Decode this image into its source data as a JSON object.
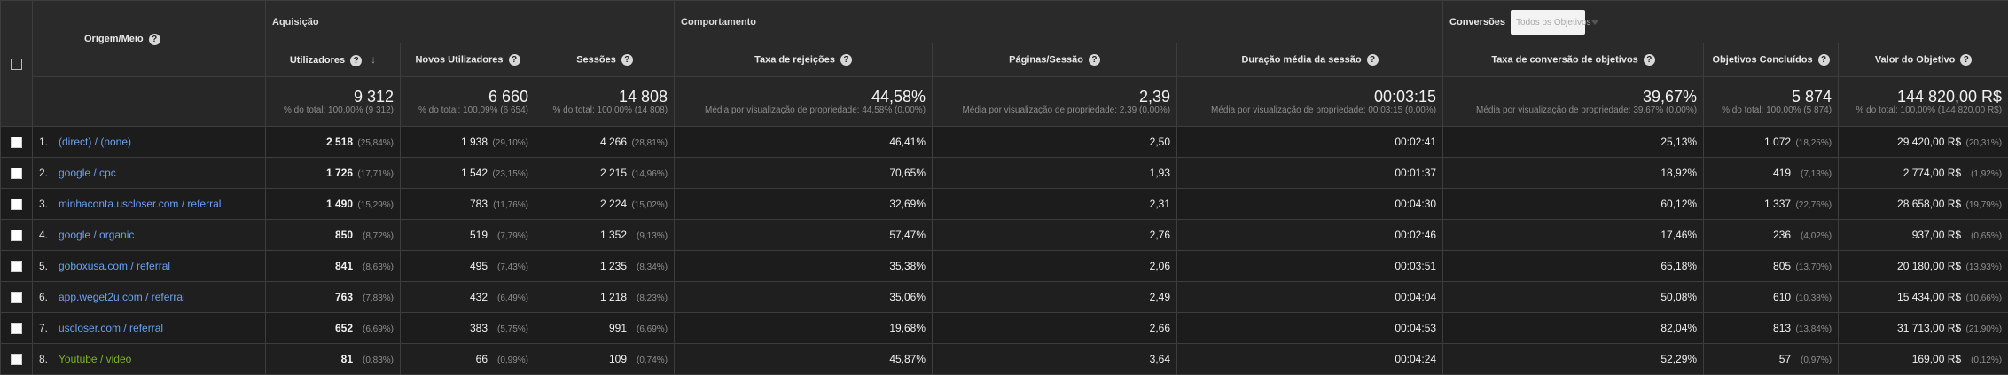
{
  "header": {
    "dimension": "Origem/Meio",
    "groups": {
      "acquisition": "Aquisição",
      "behavior": "Comportamento",
      "conversions": "Conversões"
    },
    "goal_select": "Todos os Objetivos",
    "columns": {
      "users": "Utilizadores",
      "new_users": "Novos Utilizadores",
      "sessions": "Sessões",
      "bounce": "Taxa de rejeições",
      "pages": "Páginas/Sessão",
      "duration": "Duração média da sessão",
      "conv_rate": "Taxa de conversão de objetivos",
      "completions": "Objetivos Concluídos",
      "value": "Valor do Objetivo"
    },
    "help_glyph": "?",
    "sort_glyph": "↓"
  },
  "totals": {
    "users": {
      "value": "9 312",
      "sub": "% do total: 100,00% (9 312)"
    },
    "new_users": {
      "value": "6 660",
      "sub": "% do total: 100,09% (6 654)"
    },
    "sessions": {
      "value": "14 808",
      "sub": "% do total: 100,00% (14 808)"
    },
    "bounce": {
      "value": "44,58%",
      "sub": "Média por visualização de propriedade: 44,58% (0,00%)"
    },
    "pages": {
      "value": "2,39",
      "sub": "Média por visualização de propriedade: 2,39 (0,00%)"
    },
    "duration": {
      "value": "00:03:15",
      "sub": "Média por visualização de propriedade: 00:03:15 (0,00%)"
    },
    "conv_rate": {
      "value": "39,67%",
      "sub": "Média por visualização de propriedade: 39,67% (0,00%)"
    },
    "completions": {
      "value": "5 874",
      "sub": "% do total: 100,00% (5 874)"
    },
    "value": {
      "value": "144 820,00 R$",
      "sub": "% do total: 100,00% (144 820,00 R$)"
    }
  },
  "rows": [
    {
      "rank": "1.",
      "source": "(direct) / (none)",
      "users": "2 518",
      "users_pct": "(25,84%)",
      "new_users": "1 938",
      "new_users_pct": "(29,10%)",
      "sessions": "4 266",
      "sessions_pct": "(28,81%)",
      "bounce": "46,41%",
      "pages": "2,50",
      "duration": "00:02:41",
      "conv_rate": "25,13%",
      "completions": "1 072",
      "completions_pct": "(18,25%)",
      "value": "29 420,00 R$",
      "value_pct": "(20,31%)"
    },
    {
      "rank": "2.",
      "source": "google / cpc",
      "users": "1 726",
      "users_pct": "(17,71%)",
      "new_users": "1 542",
      "new_users_pct": "(23,15%)",
      "sessions": "2 215",
      "sessions_pct": "(14,96%)",
      "bounce": "70,65%",
      "pages": "1,93",
      "duration": "00:01:37",
      "conv_rate": "18,92%",
      "completions": "419",
      "completions_pct": "(7,13%)",
      "value": "2 774,00 R$",
      "value_pct": "(1,92%)"
    },
    {
      "rank": "3.",
      "source": "minhaconta.uscloser.com / referral",
      "users": "1 490",
      "users_pct": "(15,29%)",
      "new_users": "783",
      "new_users_pct": "(11,76%)",
      "sessions": "2 224",
      "sessions_pct": "(15,02%)",
      "bounce": "32,69%",
      "pages": "2,31",
      "duration": "00:04:30",
      "conv_rate": "60,12%",
      "completions": "1 337",
      "completions_pct": "(22,76%)",
      "value": "28 658,00 R$",
      "value_pct": "(19,79%)"
    },
    {
      "rank": "4.",
      "source": "google / organic",
      "users": "850",
      "users_pct": "(8,72%)",
      "new_users": "519",
      "new_users_pct": "(7,79%)",
      "sessions": "1 352",
      "sessions_pct": "(9,13%)",
      "bounce": "57,47%",
      "pages": "2,76",
      "duration": "00:02:46",
      "conv_rate": "17,46%",
      "completions": "236",
      "completions_pct": "(4,02%)",
      "value": "937,00 R$",
      "value_pct": "(0,65%)"
    },
    {
      "rank": "5.",
      "source": "goboxusa.com / referral",
      "users": "841",
      "users_pct": "(8,63%)",
      "new_users": "495",
      "new_users_pct": "(7,43%)",
      "sessions": "1 235",
      "sessions_pct": "(8,34%)",
      "bounce": "35,38%",
      "pages": "2,06",
      "duration": "00:03:51",
      "conv_rate": "65,18%",
      "completions": "805",
      "completions_pct": "(13,70%)",
      "value": "20 180,00 R$",
      "value_pct": "(13,93%)"
    },
    {
      "rank": "6.",
      "source": "app.weget2u.com / referral",
      "users": "763",
      "users_pct": "(7,83%)",
      "new_users": "432",
      "new_users_pct": "(6,49%)",
      "sessions": "1 218",
      "sessions_pct": "(8,23%)",
      "bounce": "35,06%",
      "pages": "2,49",
      "duration": "00:04:04",
      "conv_rate": "50,08%",
      "completions": "610",
      "completions_pct": "(10,38%)",
      "value": "15 434,00 R$",
      "value_pct": "(10,66%)"
    },
    {
      "rank": "7.",
      "source": "uscloser.com / referral",
      "users": "652",
      "users_pct": "(6,69%)",
      "new_users": "383",
      "new_users_pct": "(5,75%)",
      "sessions": "991",
      "sessions_pct": "(6,69%)",
      "bounce": "19,68%",
      "pages": "2,66",
      "duration": "00:04:53",
      "conv_rate": "82,04%",
      "completions": "813",
      "completions_pct": "(13,84%)",
      "value": "31 713,00 R$",
      "value_pct": "(21,90%)"
    },
    {
      "rank": "8.",
      "source": "Youtube / video",
      "users": "81",
      "users_pct": "(0,83%)",
      "new_users": "66",
      "new_users_pct": "(0,99%)",
      "sessions": "109",
      "sessions_pct": "(0,74%)",
      "bounce": "45,87%",
      "pages": "3,64",
      "duration": "00:04:24",
      "conv_rate": "52,29%",
      "completions": "57",
      "completions_pct": "(0,97%)",
      "value": "169,00 R$",
      "value_pct": "(0,12%)"
    }
  ]
}
